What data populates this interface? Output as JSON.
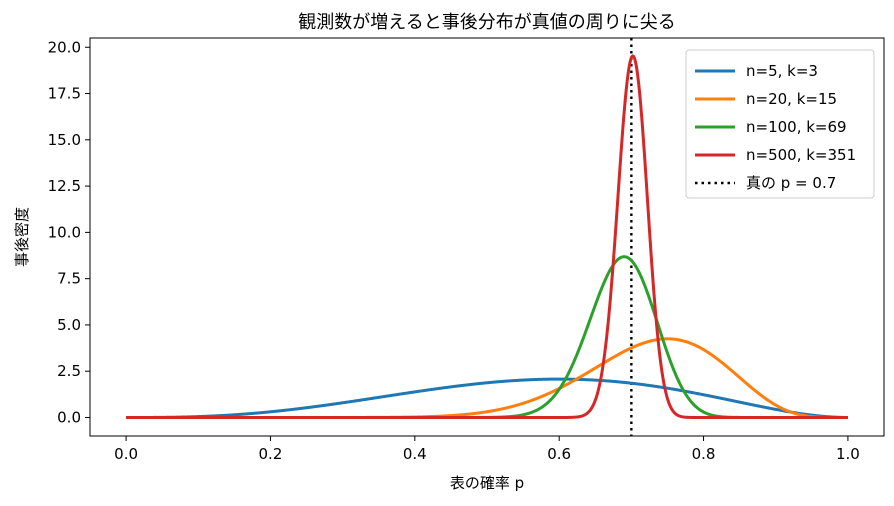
{
  "chart_data": {
    "type": "line",
    "title": "観測数が増えると事後分布が真値の周りに尖る",
    "xlabel": "表の確率 p",
    "ylabel": "事後密度",
    "xlim": [
      -0.05,
      1.05
    ],
    "ylim": [
      -1.0,
      20.5
    ],
    "x_ticks": [
      0.0,
      0.2,
      0.4,
      0.6,
      0.8,
      1.0
    ],
    "x_tick_labels": [
      "0.0",
      "0.2",
      "0.4",
      "0.6",
      "0.8",
      "1.0"
    ],
    "y_ticks": [
      0.0,
      2.5,
      5.0,
      7.5,
      10.0,
      12.5,
      15.0,
      17.5,
      20.0
    ],
    "y_tick_labels": [
      "0.0",
      "2.5",
      "5.0",
      "7.5",
      "10.0",
      "12.5",
      "15.0",
      "17.5",
      "20.0"
    ],
    "grid": false,
    "legend_position": "top-right",
    "series": [
      {
        "name": "n=5, k=3",
        "n": 5,
        "k": 3,
        "color": "#1f77b4"
      },
      {
        "name": "n=20, k=15",
        "n": 20,
        "k": 15,
        "color": "#ff7f0e"
      },
      {
        "name": "n=100, k=69",
        "n": 100,
        "k": 69,
        "color": "#2ca02c"
      },
      {
        "name": "n=500, k=351",
        "n": 500,
        "k": 351,
        "color": "#d62728"
      }
    ],
    "reference_line": {
      "name": "真の p = 0.7",
      "x": 0.7,
      "color": "#000000",
      "style": "dotted"
    }
  }
}
